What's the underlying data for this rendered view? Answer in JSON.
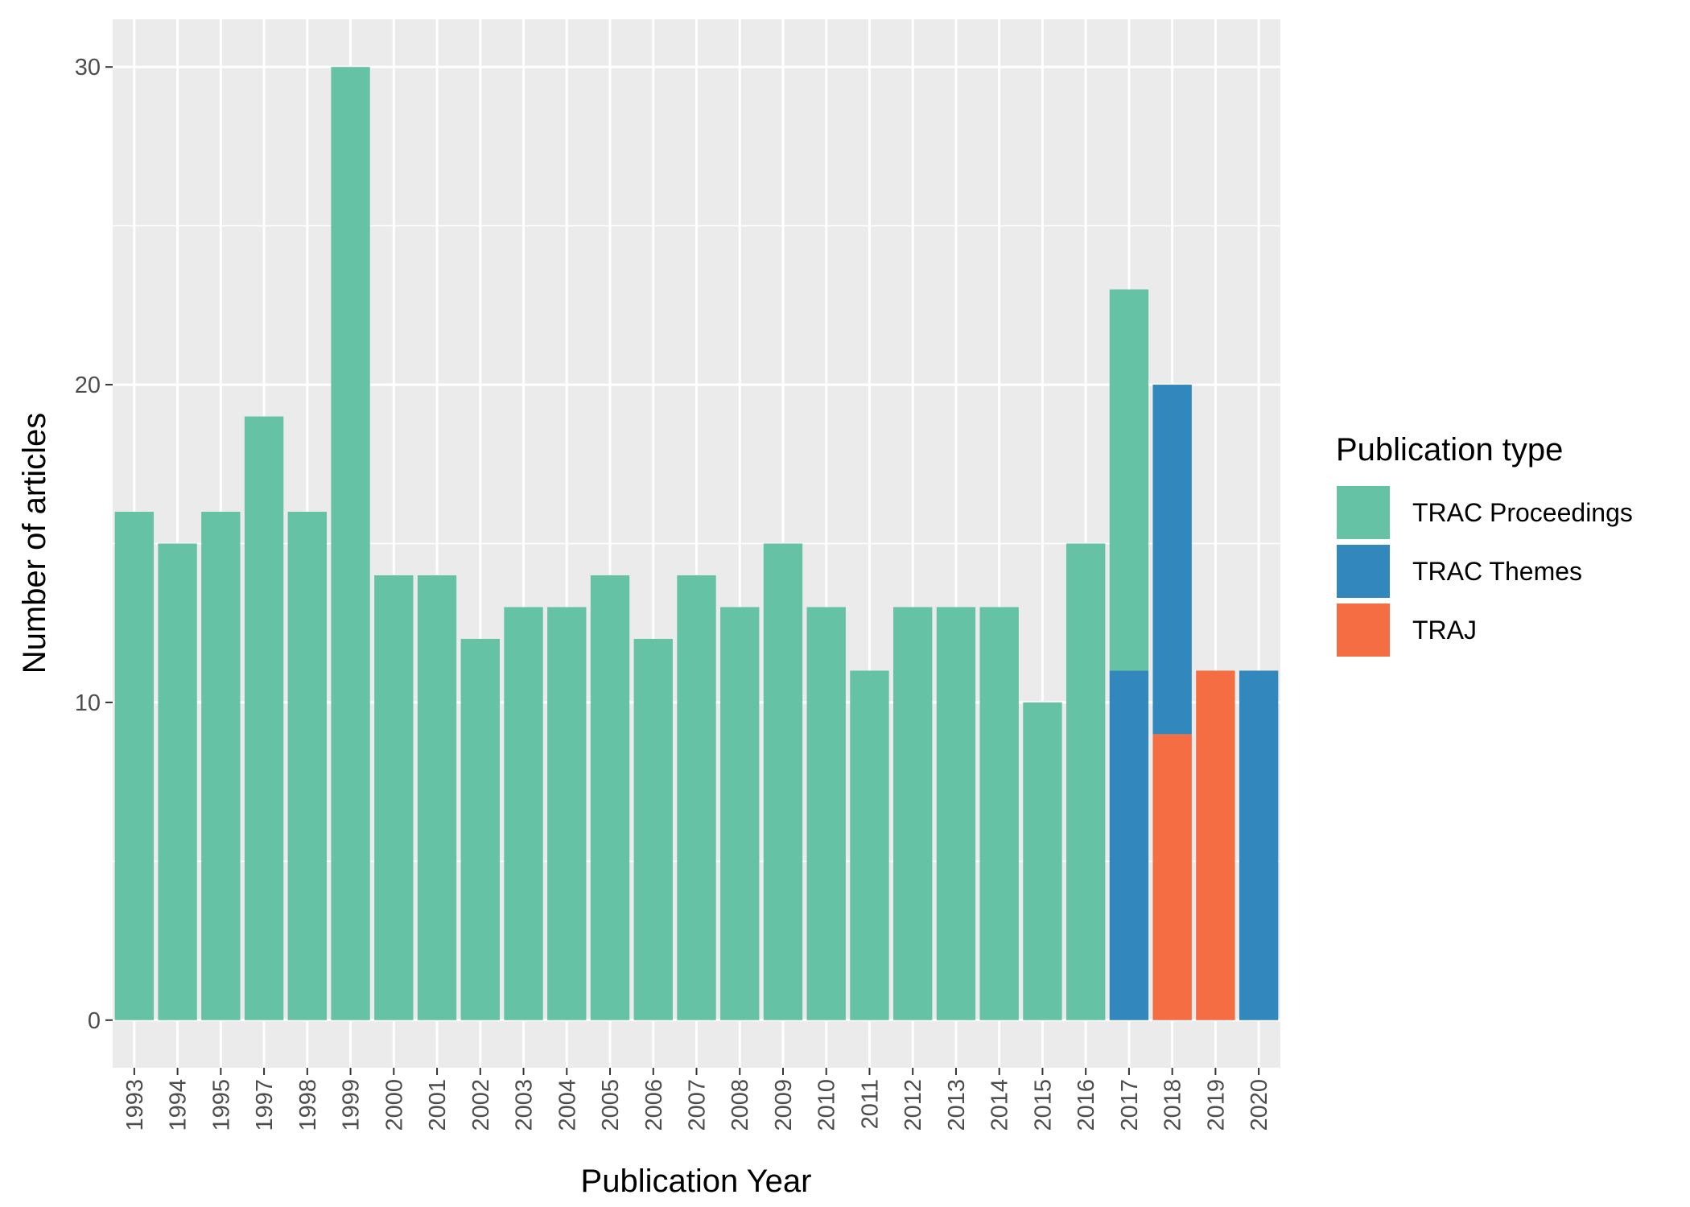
{
  "chart_data": {
    "type": "bar",
    "stacked": true,
    "xlabel": "Publication Year",
    "ylabel": "Number of articles",
    "ylim": [
      -1.5,
      31.5
    ],
    "yticks": [
      0,
      10,
      20,
      30
    ],
    "grid": true,
    "legend_position": "right",
    "legend_title": "Publication type",
    "categories": [
      "1993",
      "1994",
      "1995",
      "1997",
      "1998",
      "1999",
      "2000",
      "2001",
      "2002",
      "2003",
      "2004",
      "2005",
      "2006",
      "2007",
      "2008",
      "2009",
      "2010",
      "2011",
      "2012",
      "2013",
      "2014",
      "2015",
      "2016",
      "2017",
      "2018",
      "2019",
      "2020"
    ],
    "series": [
      {
        "name": "TRAC Proceedings",
        "color": "#66c2a5",
        "values": [
          16,
          15,
          16,
          19,
          16,
          30,
          14,
          14,
          12,
          13,
          13,
          14,
          12,
          14,
          13,
          15,
          13,
          11,
          13,
          13,
          13,
          10,
          15,
          12,
          0,
          0,
          0
        ]
      },
      {
        "name": "TRAC Themes",
        "color": "#3288bd",
        "values": [
          0,
          0,
          0,
          0,
          0,
          0,
          0,
          0,
          0,
          0,
          0,
          0,
          0,
          0,
          0,
          0,
          0,
          0,
          0,
          0,
          0,
          0,
          0,
          11,
          11,
          0,
          11
        ]
      },
      {
        "name": "TRAJ",
        "color": "#f46d43",
        "values": [
          0,
          0,
          0,
          0,
          0,
          0,
          0,
          0,
          0,
          0,
          0,
          0,
          0,
          0,
          0,
          0,
          0,
          0,
          0,
          0,
          0,
          0,
          0,
          0,
          9,
          11,
          0
        ]
      }
    ],
    "stack_order": [
      "TRAJ",
      "TRAC Themes",
      "TRAC Proceedings"
    ]
  }
}
